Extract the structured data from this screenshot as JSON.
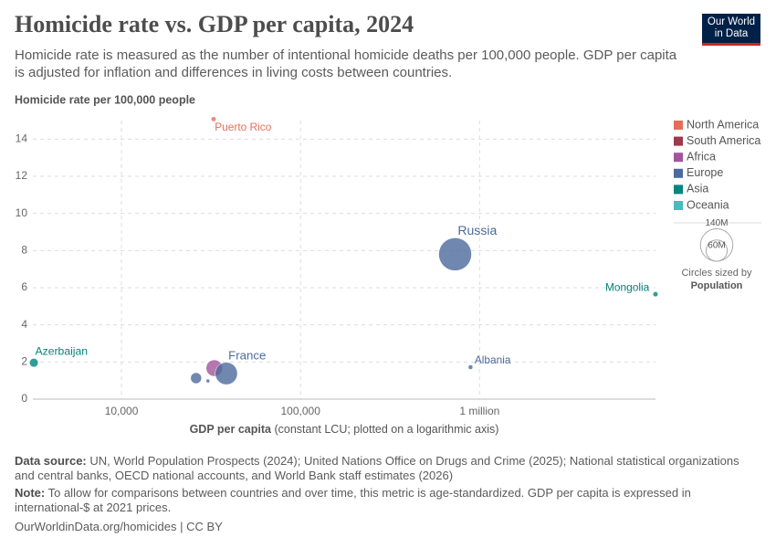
{
  "header": {
    "title": "Homicide rate vs. GDP per capita, 2024",
    "subtitle": "Homicide rate is measured as the number of intentional homicide deaths per 100,000 people. GDP per capita is adjusted for inflation and differences in living costs between countries.",
    "logo": [
      "Our World",
      "in Data"
    ]
  },
  "chart_data": {
    "type": "scatter",
    "y_label": "Homicide rate per 100,000 people",
    "x_label": "GDP per capita",
    "x_label_note": "(constant LCU; plotted on a logarithmic axis)",
    "x_scale": "log",
    "xlim": [
      3200,
      9600000
    ],
    "xticks": [
      {
        "value": 10000,
        "label": "10,000"
      },
      {
        "value": 100000,
        "label": "100,000"
      },
      {
        "value": 1000000,
        "label": "1 million"
      }
    ],
    "ylim": [
      0,
      15
    ],
    "yticks": [
      0,
      2,
      4,
      6,
      8,
      10,
      12,
      14
    ],
    "grid": true,
    "legend_position": "right",
    "series": [
      {
        "name": "North America",
        "color": "#e56e5a",
        "x": [
          32700
        ],
        "values": [
          15.08
        ],
        "size": [
          3200000
        ],
        "labels": [
          "Puerto Rico"
        ]
      },
      {
        "name": "South America",
        "color": "#9a3a4a",
        "x": [],
        "values": [],
        "size": [],
        "labels": []
      },
      {
        "name": "Africa",
        "color": "#a2559c",
        "x": [
          33000
        ],
        "values": [
          1.67
        ],
        "size": [
          36000000
        ],
        "labels": [
          null
        ]
      },
      {
        "name": "Europe",
        "color": "#4c6a9c",
        "x": [
          730000,
          890000,
          38500,
          26100,
          30400
        ],
        "values": [
          7.8,
          1.72,
          1.38,
          1.13,
          0.98
        ],
        "size": [
          144000000,
          2800000,
          66000000,
          16000000,
          1800000
        ],
        "labels": [
          "Russia",
          "Albania",
          "France",
          null,
          null
        ]
      },
      {
        "name": "Asia",
        "color": "#00847e",
        "x": [
          9600000,
          3240
        ],
        "values": [
          5.65,
          1.96
        ],
        "size": [
          3400000,
          10200000
        ],
        "labels": [
          "Mongolia",
          "Azerbaijan"
        ]
      },
      {
        "name": "Oceania",
        "color": "#4cb9bb",
        "x": [],
        "values": [],
        "size": [],
        "labels": []
      }
    ],
    "size_legend": {
      "ticks": [
        {
          "value": 140000000,
          "label": "140M"
        },
        {
          "value": 60000000,
          "label": "60M"
        }
      ],
      "title": "Circles sized by",
      "variable": "Population"
    }
  },
  "footer": {
    "source_label": "Data source:",
    "source": "UN, World Population Prospects (2024); United Nations Office on Drugs and Crime (2025); National statistical organizations and central banks, OECD national accounts, and World Bank staff estimates (2026)",
    "note_label": "Note:",
    "note": "To allow for comparisons between countries and over time, this metric is age-standardized. GDP per capita is expressed in international-$ at 2021 prices.",
    "url": "OurWorldinData.org/homicides | CC BY"
  }
}
